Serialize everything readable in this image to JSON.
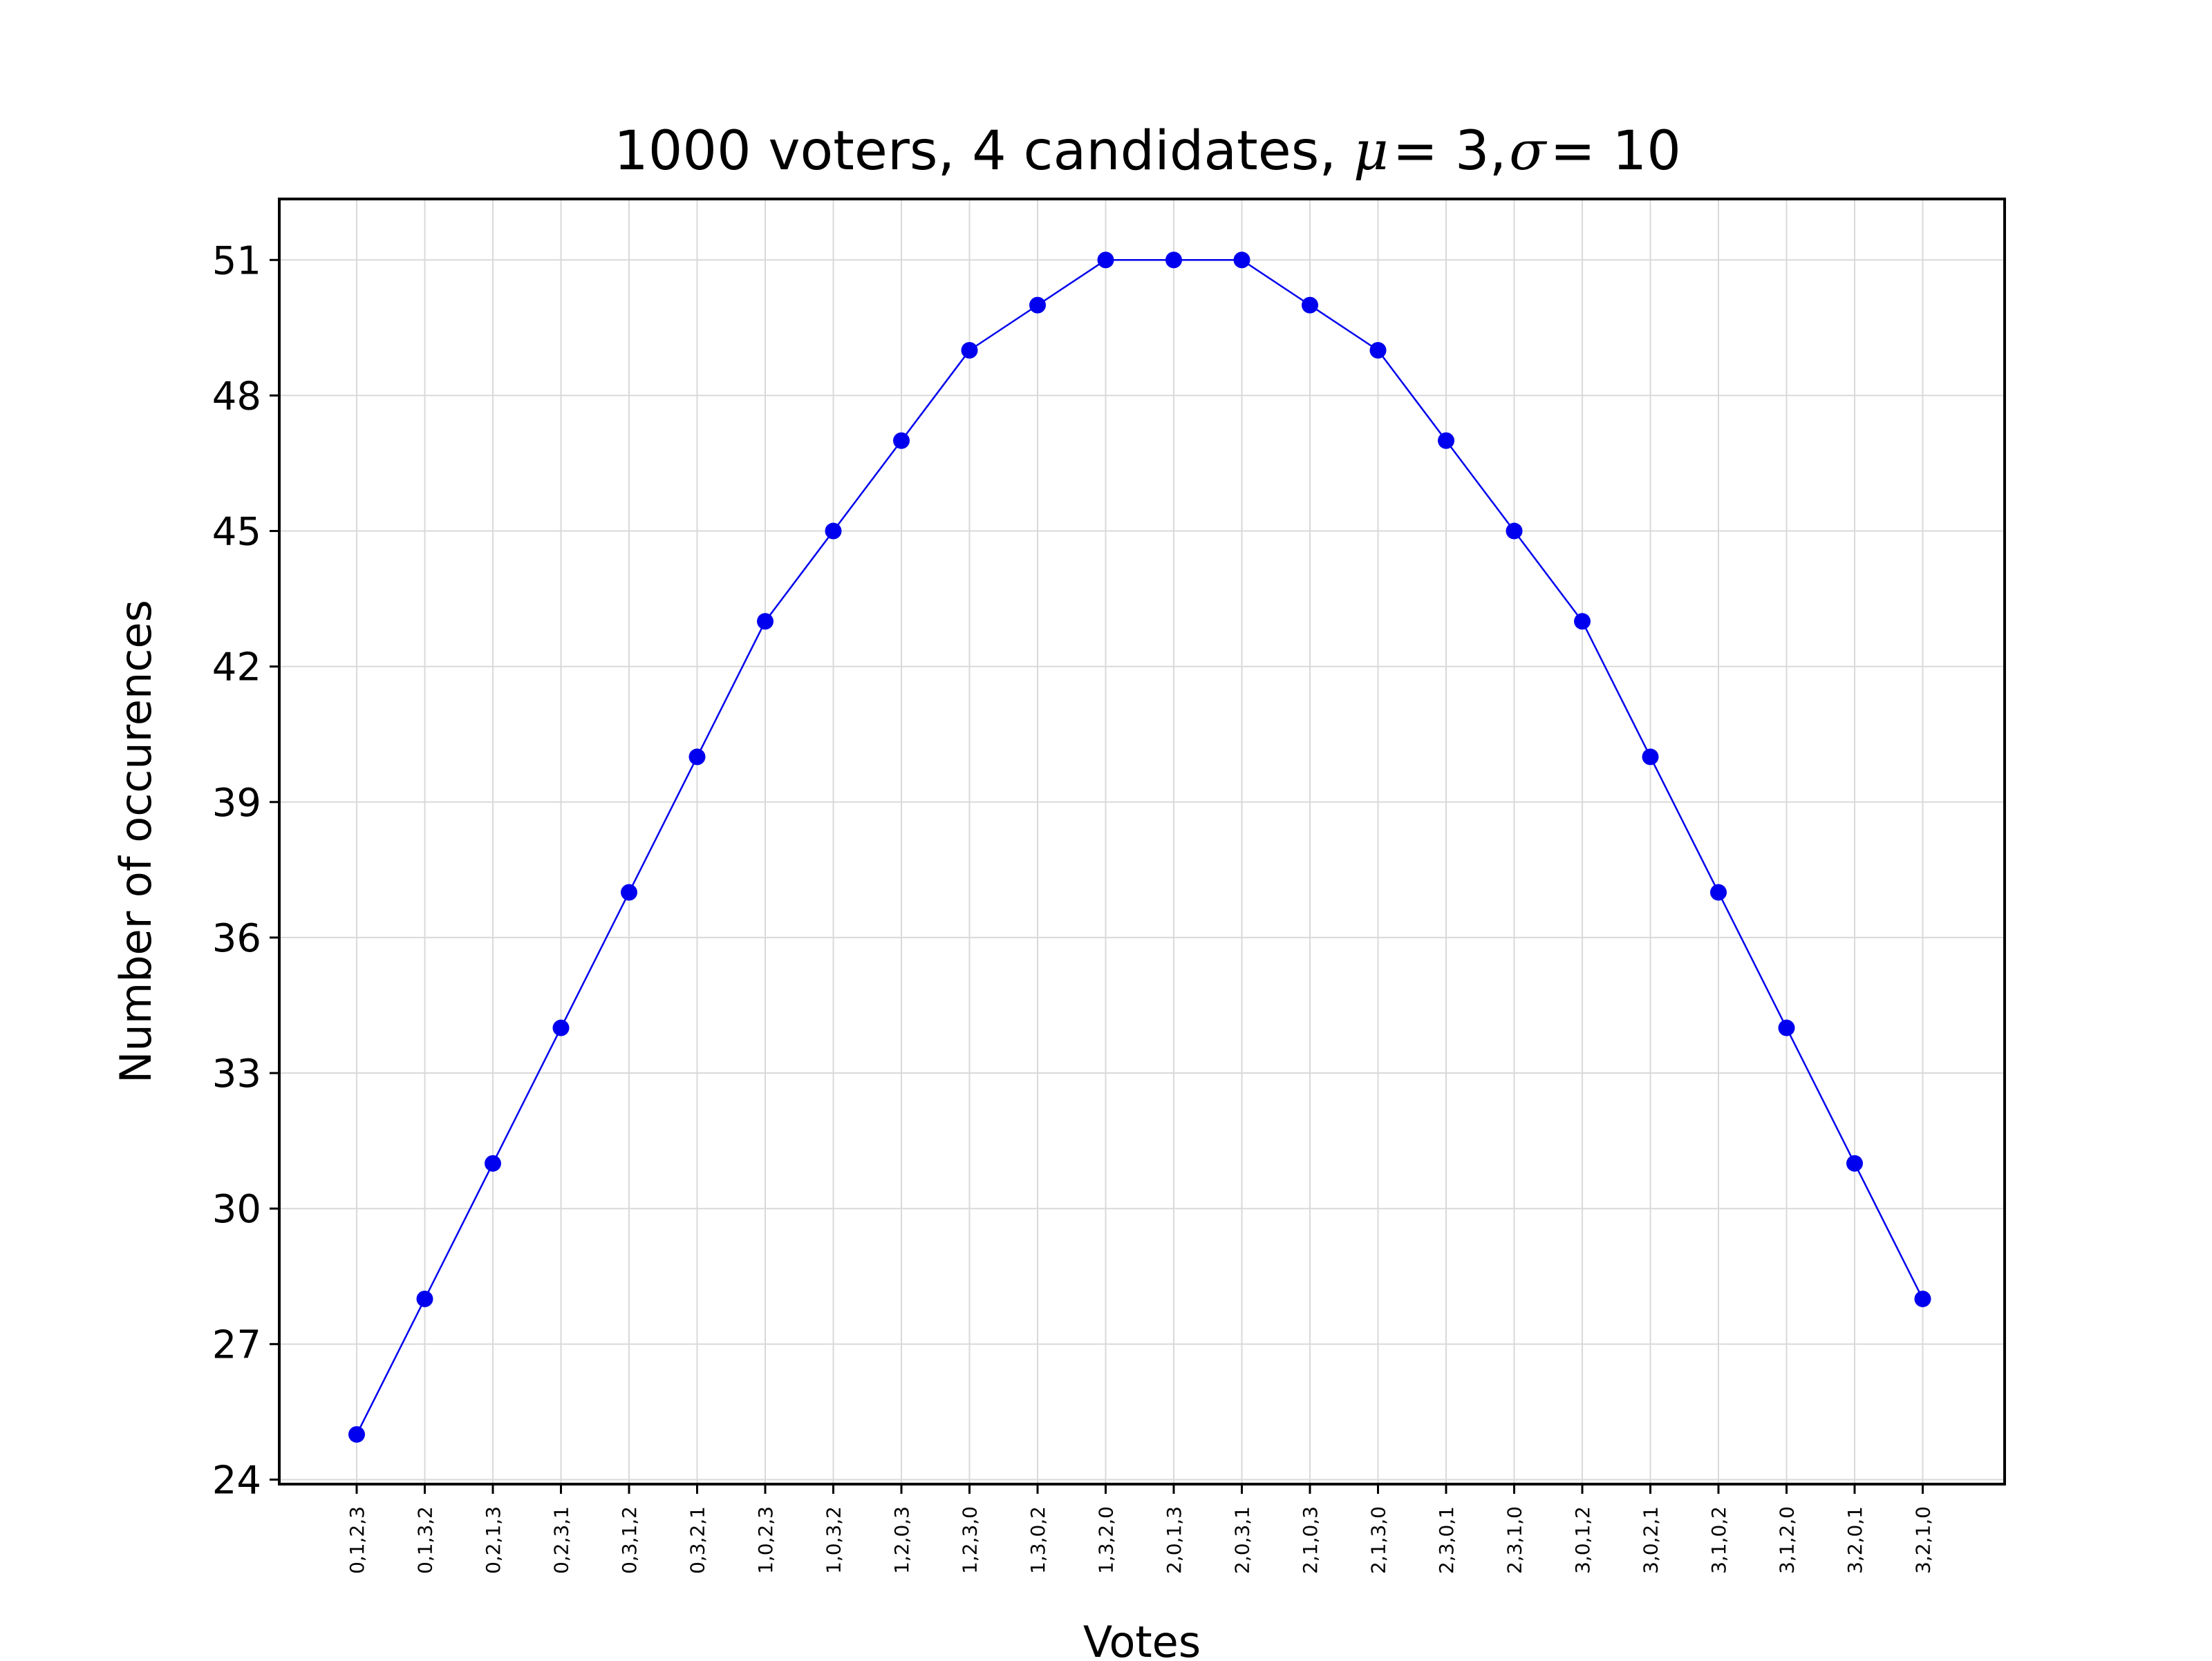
{
  "chart_data": {
    "type": "line",
    "title_prefix": "1000 voters, 4 candidates, ",
    "title_mu": "μ",
    "title_mu_value": "= 3,",
    "title_sigma": "σ",
    "title_sigma_value": "= 10",
    "xlabel": "Votes",
    "ylabel": "Number of occurences",
    "categories": [
      "0,1,2,3",
      "0,1,3,2",
      "0,2,1,3",
      "0,2,3,1",
      "0,3,1,2",
      "0,3,2,1",
      "1,0,2,3",
      "1,0,3,2",
      "1,2,0,3",
      "1,2,3,0",
      "1,3,0,2",
      "1,3,2,0",
      "2,0,1,3",
      "2,0,3,1",
      "2,1,0,3",
      "2,1,3,0",
      "2,3,0,1",
      "2,3,1,0",
      "3,0,1,2",
      "3,0,2,1",
      "3,1,0,2",
      "3,1,2,0",
      "3,2,0,1",
      "3,2,1,0"
    ],
    "values": [
      25,
      28,
      31,
      34,
      37,
      40,
      43,
      45,
      47,
      49,
      50,
      51,
      51,
      51,
      50,
      49,
      47,
      45,
      43,
      40,
      37,
      34,
      31,
      28
    ],
    "yticks": [
      24,
      27,
      30,
      33,
      36,
      39,
      42,
      45,
      48,
      51
    ],
    "ylim": [
      23.9,
      52.35
    ],
    "grid": true,
    "line_color": "#0000ee",
    "marker_color": "#0000ee"
  }
}
